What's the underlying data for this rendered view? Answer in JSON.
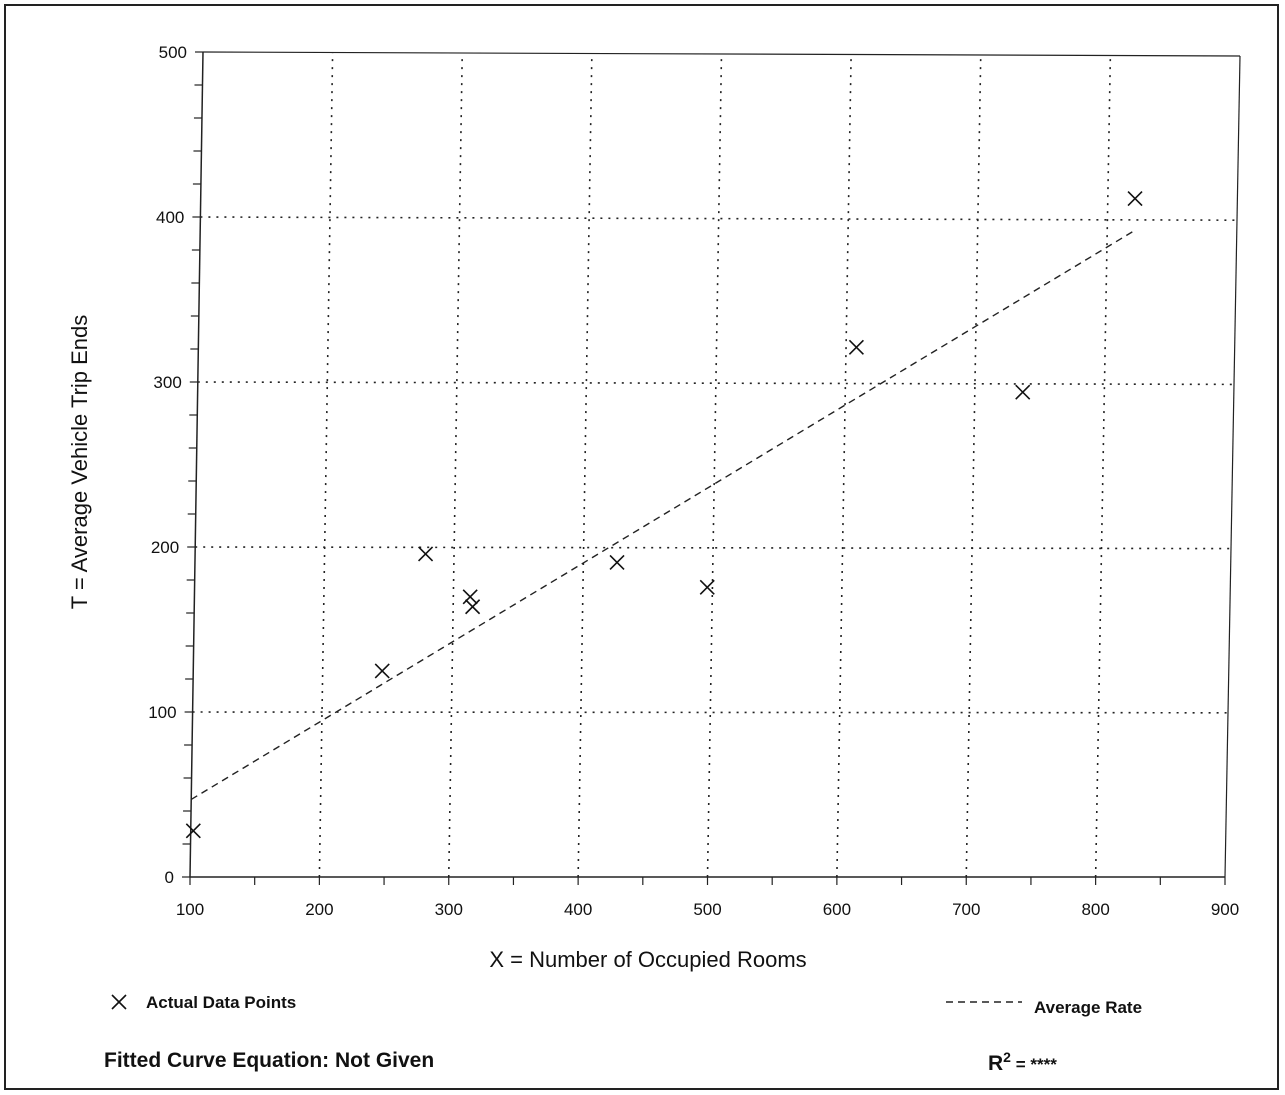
{
  "chart_data": {
    "type": "scatter",
    "xlabel": "X = Number of Occupied Rooms",
    "ylabel": "T = Average Vehicle Trip Ends",
    "xlim": [
      100,
      900
    ],
    "ylim": [
      0,
      500
    ],
    "xticks": [
      100,
      200,
      300,
      400,
      500,
      600,
      700,
      800,
      900
    ],
    "yticks": [
      0,
      100,
      200,
      300,
      400,
      500
    ],
    "x_tick_labels": [
      "100",
      "200",
      "300",
      "400",
      "500",
      "600",
      "700",
      "800",
      "900"
    ],
    "y_tick_labels": [
      "0",
      "100",
      "200",
      "300",
      "400",
      "500"
    ],
    "grid": true,
    "series": [
      {
        "name": "Actual Data Points",
        "marker": "x",
        "points": [
          {
            "x": 102,
            "y": 28
          },
          {
            "x": 246,
            "y": 125
          },
          {
            "x": 278,
            "y": 196
          },
          {
            "x": 313,
            "y": 170
          },
          {
            "x": 315,
            "y": 164
          },
          {
            "x": 426,
            "y": 191
          },
          {
            "x": 496,
            "y": 176
          },
          {
            "x": 608,
            "y": 322
          },
          {
            "x": 737,
            "y": 295
          },
          {
            "x": 821,
            "y": 413
          }
        ]
      },
      {
        "name": "Average Rate",
        "style": "dashed",
        "points": [
          {
            "x": 100,
            "y": 47
          },
          {
            "x": 820,
            "y": 393
          }
        ]
      }
    ],
    "legend": {
      "points_label": "Actual Data Points",
      "line_label": "Average Rate",
      "placement": "bottom"
    },
    "footer": {
      "equation": "Fitted Curve Equation:  Not Given",
      "r2_prefix": "R",
      "r2_sup": "2",
      "r2_value": " = ****"
    }
  }
}
